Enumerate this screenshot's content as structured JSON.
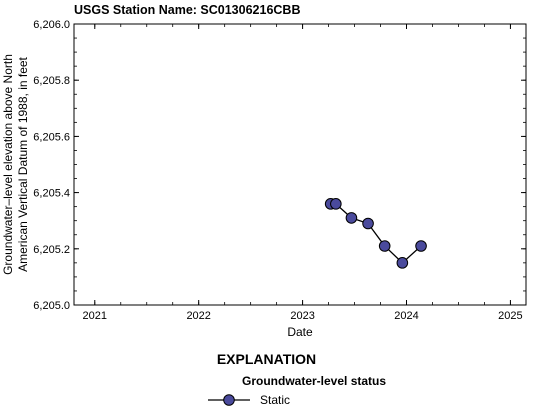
{
  "station_title": "USGS Station Name: SC01306216CBB",
  "explanation": {
    "title": "EXPLANATION",
    "subtitle": "Groundwater-level status",
    "items": [
      {
        "label": "Static",
        "marker_color": "#4a4a9c",
        "line_color": "#000000"
      }
    ]
  },
  "chart_data": {
    "type": "line",
    "title": "",
    "xlabel": "Date",
    "ylabel_lines": [
      "Groundwater–level elevation above North",
      "American Vertical Datum of 1988, in feet"
    ],
    "xlim": [
      2020.8,
      2025.15
    ],
    "ylim": [
      6205.0,
      6206.0
    ],
    "x_ticks": [
      2021,
      2022,
      2023,
      2024,
      2025
    ],
    "x_tick_labels": [
      "2021",
      "2022",
      "2023",
      "2024",
      "2025"
    ],
    "y_ticks": [
      6205.0,
      6205.2,
      6205.4,
      6205.6,
      6205.8,
      6206.0
    ],
    "y_tick_labels": [
      "6,205.0",
      "6,205.2",
      "6,205.4",
      "6,205.6",
      "6,205.8",
      "6,206.0"
    ],
    "grid": false,
    "series": [
      {
        "name": "Static",
        "color": "#4a4a9c",
        "x": [
          2023.27,
          2023.32,
          2023.47,
          2023.63,
          2023.79,
          2023.96,
          2024.14
        ],
        "y": [
          6205.36,
          6205.36,
          6205.31,
          6205.29,
          6205.21,
          6205.15,
          6205.21
        ]
      }
    ]
  }
}
